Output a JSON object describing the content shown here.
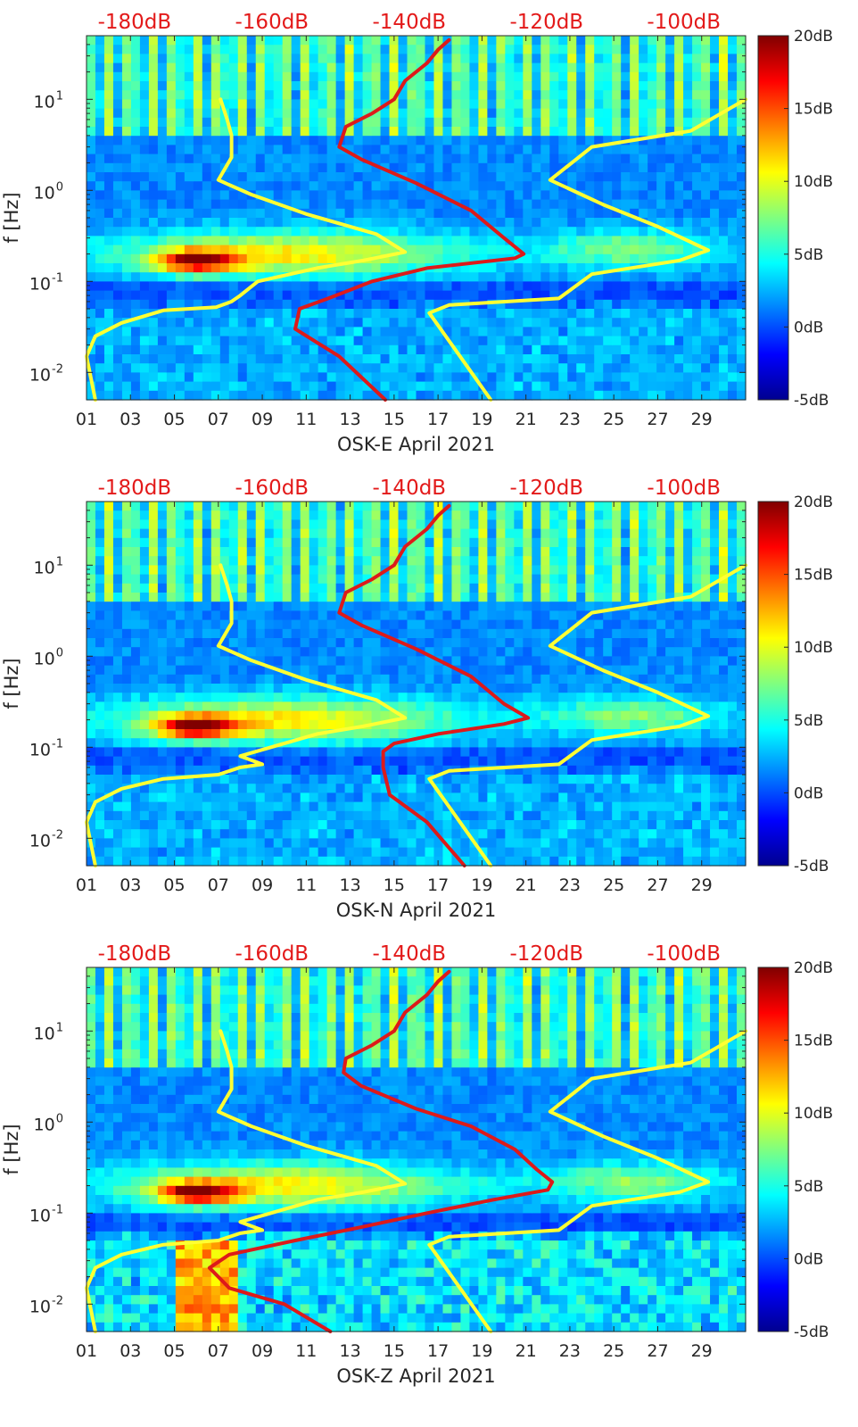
{
  "figure": {
    "colormap": "jet",
    "background": "#ffffff"
  },
  "chart_data": [
    {
      "type": "heatmap",
      "station": "OSK-E",
      "xlabel": "OSK-E April 2021",
      "ylabel": "f [Hz]",
      "x_tick_labels": [
        "01",
        "03",
        "05",
        "07",
        "09",
        "11",
        "13",
        "15",
        "17",
        "19",
        "21",
        "23",
        "25",
        "27",
        "29"
      ],
      "x_range_days": [
        1,
        31
      ],
      "y_tick_labels": [
        {
          "base": "10",
          "exp": "1",
          "value": 10
        },
        {
          "base": "10",
          "exp": "0",
          "value": 1
        },
        {
          "base": "10",
          "exp": "-1",
          "value": 0.1
        },
        {
          "base": "10",
          "exp": "-2",
          "value": 0.01
        }
      ],
      "y_range_hz": [
        0.005,
        50
      ],
      "y_scale": "log",
      "top_axis_labels": [
        "-180dB",
        "-160dB",
        "-140dB",
        "-120dB",
        "-100dB"
      ],
      "top_axis_range_db": [
        -187,
        -91
      ],
      "colorbar": {
        "labels": [
          "20dB",
          "15dB",
          "10dB",
          "5dB",
          "0dB",
          "-5dB"
        ],
        "range_db": [
          -5,
          20
        ]
      },
      "series": [
        {
          "color": "#ffff33",
          "points": [
            [
              1.4,
              0.005
            ],
            [
              1.0,
              0.015
            ],
            [
              1.4,
              0.025
            ],
            [
              2.6,
              0.035
            ],
            [
              4.5,
              0.048
            ],
            [
              6.9,
              0.052
            ],
            [
              7.6,
              0.06
            ],
            [
              8.0,
              0.07
            ],
            [
              8.8,
              0.1
            ],
            [
              11.5,
              0.14
            ],
            [
              13.6,
              0.17
            ],
            [
              15.5,
              0.21
            ],
            [
              14.2,
              0.33
            ],
            [
              11.0,
              0.55
            ],
            [
              8.5,
              0.9
            ],
            [
              7.0,
              1.3
            ],
            [
              7.6,
              2.3
            ],
            [
              7.6,
              4.0
            ],
            [
              7.4,
              6.0
            ],
            [
              7.1,
              10
            ]
          ]
        },
        {
          "color": "#ffff33",
          "points": [
            [
              19.4,
              0.005
            ],
            [
              18.0,
              0.015
            ],
            [
              16.6,
              0.045
            ],
            [
              17.5,
              0.055
            ],
            [
              22.5,
              0.065
            ],
            [
              24.0,
              0.12
            ],
            [
              28.0,
              0.17
            ],
            [
              29.3,
              0.22
            ],
            [
              27.0,
              0.4
            ],
            [
              24.5,
              0.7
            ],
            [
              22.1,
              1.3
            ],
            [
              24.0,
              3.0
            ],
            [
              28.5,
              4.5
            ],
            [
              31.0,
              10
            ]
          ]
        },
        {
          "color": "#dd1a1a",
          "points": [
            [
              14.6,
              0.005
            ],
            [
              12.5,
              0.015
            ],
            [
              10.5,
              0.03
            ],
            [
              10.7,
              0.05
            ],
            [
              12.0,
              0.065
            ],
            [
              14.0,
              0.1
            ],
            [
              16.5,
              0.14
            ],
            [
              20.5,
              0.18
            ],
            [
              20.9,
              0.2
            ],
            [
              20.0,
              0.3
            ],
            [
              18.5,
              0.6
            ],
            [
              16.0,
              1.2
            ],
            [
              13.5,
              2.2
            ],
            [
              12.5,
              3.0
            ],
            [
              12.8,
              5.0
            ],
            [
              14.0,
              7.0
            ],
            [
              15.0,
              10.0
            ],
            [
              15.5,
              16.0
            ],
            [
              16.5,
              25.0
            ],
            [
              17.0,
              35.0
            ],
            [
              17.5,
              45.0
            ]
          ]
        }
      ]
    },
    {
      "type": "heatmap",
      "station": "OSK-N",
      "xlabel": "OSK-N April 2021",
      "ylabel": "f [Hz]",
      "x_tick_labels": [
        "01",
        "03",
        "05",
        "07",
        "09",
        "11",
        "13",
        "15",
        "17",
        "19",
        "21",
        "23",
        "25",
        "27",
        "29"
      ],
      "x_range_days": [
        1,
        31
      ],
      "y_tick_labels": [
        {
          "base": "10",
          "exp": "1",
          "value": 10
        },
        {
          "base": "10",
          "exp": "0",
          "value": 1
        },
        {
          "base": "10",
          "exp": "-1",
          "value": 0.1
        },
        {
          "base": "10",
          "exp": "-2",
          "value": 0.01
        }
      ],
      "y_range_hz": [
        0.005,
        50
      ],
      "y_scale": "log",
      "top_axis_labels": [
        "-180dB",
        "-160dB",
        "-140dB",
        "-120dB",
        "-100dB"
      ],
      "top_axis_range_db": [
        -187,
        -91
      ],
      "colorbar": {
        "labels": [
          "20dB",
          "15dB",
          "10dB",
          "5dB",
          "0dB",
          "-5dB"
        ],
        "range_db": [
          -5,
          20
        ]
      },
      "series": [
        {
          "color": "#ffff33",
          "points": [
            [
              1.4,
              0.005
            ],
            [
              1.0,
              0.015
            ],
            [
              1.4,
              0.025
            ],
            [
              2.6,
              0.035
            ],
            [
              4.5,
              0.045
            ],
            [
              7.0,
              0.05
            ],
            [
              8.0,
              0.06
            ],
            [
              9.0,
              0.065
            ],
            [
              8.0,
              0.08
            ],
            [
              11.5,
              0.14
            ],
            [
              13.6,
              0.17
            ],
            [
              15.5,
              0.21
            ],
            [
              14.2,
              0.33
            ],
            [
              11.0,
              0.55
            ],
            [
              8.5,
              0.9
            ],
            [
              7.0,
              1.3
            ],
            [
              7.6,
              2.3
            ],
            [
              7.6,
              4.0
            ],
            [
              7.4,
              6.0
            ],
            [
              7.1,
              10
            ]
          ]
        },
        {
          "color": "#ffff33",
          "points": [
            [
              19.4,
              0.005
            ],
            [
              18.0,
              0.015
            ],
            [
              16.6,
              0.045
            ],
            [
              17.5,
              0.055
            ],
            [
              22.5,
              0.065
            ],
            [
              24.0,
              0.12
            ],
            [
              28.0,
              0.17
            ],
            [
              29.3,
              0.22
            ],
            [
              27.0,
              0.4
            ],
            [
              24.5,
              0.7
            ],
            [
              22.1,
              1.3
            ],
            [
              24.0,
              3.0
            ],
            [
              28.5,
              4.5
            ],
            [
              31.0,
              10
            ]
          ]
        },
        {
          "color": "#dd1a1a",
          "points": [
            [
              18.2,
              0.005
            ],
            [
              16.5,
              0.015
            ],
            [
              14.8,
              0.03
            ],
            [
              14.5,
              0.06
            ],
            [
              14.5,
              0.09
            ],
            [
              15.0,
              0.11
            ],
            [
              17.0,
              0.14
            ],
            [
              20.0,
              0.18
            ],
            [
              21.1,
              0.21
            ],
            [
              20.0,
              0.3
            ],
            [
              18.5,
              0.6
            ],
            [
              16.0,
              1.2
            ],
            [
              13.5,
              2.2
            ],
            [
              12.5,
              3.0
            ],
            [
              12.8,
              5.0
            ],
            [
              14.0,
              7.0
            ],
            [
              15.0,
              10.0
            ],
            [
              15.5,
              16.0
            ],
            [
              16.5,
              25.0
            ],
            [
              17.0,
              35.0
            ],
            [
              17.5,
              45.0
            ]
          ]
        }
      ]
    },
    {
      "type": "heatmap",
      "station": "OSK-Z",
      "xlabel": "OSK-Z April 2021",
      "ylabel": "f [Hz]",
      "x_tick_labels": [
        "01",
        "03",
        "05",
        "07",
        "09",
        "11",
        "13",
        "15",
        "17",
        "19",
        "21",
        "23",
        "25",
        "27",
        "29"
      ],
      "x_range_days": [
        1,
        31
      ],
      "y_tick_labels": [
        {
          "base": "10",
          "exp": "1",
          "value": 10
        },
        {
          "base": "10",
          "exp": "0",
          "value": 1
        },
        {
          "base": "10",
          "exp": "-1",
          "value": 0.1
        },
        {
          "base": "10",
          "exp": "-2",
          "value": 0.01
        }
      ],
      "y_range_hz": [
        0.005,
        50
      ],
      "y_scale": "log",
      "top_axis_labels": [
        "-180dB",
        "-160dB",
        "-140dB",
        "-120dB",
        "-100dB"
      ],
      "top_axis_range_db": [
        -187,
        -91
      ],
      "colorbar": {
        "labels": [
          "20dB",
          "15dB",
          "10dB",
          "5dB",
          "0dB",
          "-5dB"
        ],
        "range_db": [
          -5,
          20
        ]
      },
      "series": [
        {
          "color": "#ffff33",
          "points": [
            [
              1.4,
              0.005
            ],
            [
              1.0,
              0.015
            ],
            [
              1.4,
              0.025
            ],
            [
              2.6,
              0.035
            ],
            [
              4.5,
              0.045
            ],
            [
              7.0,
              0.05
            ],
            [
              8.0,
              0.06
            ],
            [
              9.0,
              0.065
            ],
            [
              8.0,
              0.08
            ],
            [
              11.5,
              0.14
            ],
            [
              13.6,
              0.17
            ],
            [
              15.5,
              0.21
            ],
            [
              14.2,
              0.33
            ],
            [
              11.0,
              0.55
            ],
            [
              8.5,
              0.9
            ],
            [
              7.0,
              1.3
            ],
            [
              7.6,
              2.3
            ],
            [
              7.6,
              4.0
            ],
            [
              7.4,
              6.0
            ],
            [
              7.1,
              10
            ]
          ]
        },
        {
          "color": "#ffff33",
          "points": [
            [
              19.4,
              0.005
            ],
            [
              18.0,
              0.015
            ],
            [
              16.6,
              0.045
            ],
            [
              17.5,
              0.055
            ],
            [
              22.5,
              0.065
            ],
            [
              24.0,
              0.12
            ],
            [
              28.0,
              0.17
            ],
            [
              29.3,
              0.22
            ],
            [
              27.0,
              0.4
            ],
            [
              24.5,
              0.7
            ],
            [
              22.1,
              1.3
            ],
            [
              24.0,
              3.0
            ],
            [
              28.5,
              4.5
            ],
            [
              31.0,
              10
            ]
          ]
        },
        {
          "color": "#dd1a1a",
          "points": [
            [
              12.1,
              0.005
            ],
            [
              10.0,
              0.01
            ],
            [
              7.5,
              0.015
            ],
            [
              6.6,
              0.025
            ],
            [
              7.5,
              0.035
            ],
            [
              10.5,
              0.05
            ],
            [
              13.5,
              0.07
            ],
            [
              16.5,
              0.1
            ],
            [
              19.5,
              0.14
            ],
            [
              22.0,
              0.18
            ],
            [
              22.2,
              0.22
            ],
            [
              21.5,
              0.3
            ],
            [
              20.5,
              0.5
            ],
            [
              18.5,
              0.9
            ],
            [
              16.0,
              1.4
            ],
            [
              13.5,
              2.5
            ],
            [
              12.7,
              3.5
            ],
            [
              12.8,
              5.0
            ],
            [
              14.0,
              7.0
            ],
            [
              15.0,
              10.0
            ],
            [
              15.5,
              16.0
            ],
            [
              16.5,
              25.0
            ],
            [
              17.0,
              35.0
            ],
            [
              17.5,
              45.0
            ]
          ]
        }
      ]
    }
  ]
}
